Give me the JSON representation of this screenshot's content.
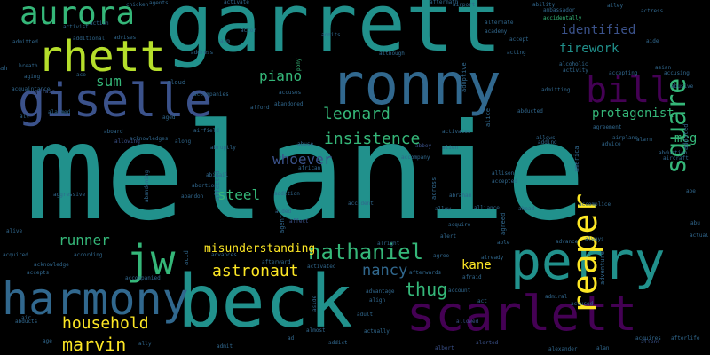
{
  "palette": {
    "background": "#000000",
    "dark_purple": "#440154",
    "indigo": "#3b528b",
    "blue": "#31688e",
    "teal": "#21918c",
    "green": "#35b779",
    "yellow_green": "#b5de2b",
    "yellow": "#fde725"
  },
  "words": [
    {
      "text": "melanie",
      "color": "#21918c",
      "rotate": 0
    },
    {
      "text": "garrett",
      "color": "#21918c",
      "rotate": 0
    },
    {
      "text": "beck",
      "color": "#21918c",
      "rotate": 0
    },
    {
      "text": "perry",
      "color": "#21918c",
      "rotate": 0
    },
    {
      "text": "ronny",
      "color": "#31688e",
      "rotate": 0
    },
    {
      "text": "scarlett",
      "color": "#440154",
      "rotate": 0
    },
    {
      "text": "harmony",
      "color": "#31688e",
      "rotate": 0
    },
    {
      "text": "giselle",
      "color": "#3b528b",
      "rotate": 0
    },
    {
      "text": "rhett",
      "color": "#b5de2b",
      "rotate": 0
    },
    {
      "text": "jw",
      "color": "#35b779",
      "rotate": 0
    },
    {
      "text": "bill",
      "color": "#440154",
      "rotate": 0
    },
    {
      "text": "aurora",
      "color": "#35b779",
      "rotate": 0
    },
    {
      "text": "reaper",
      "color": "#fde725",
      "rotate": -90
    },
    {
      "text": "square",
      "color": "#35b779",
      "rotate": -90
    },
    {
      "text": "nathaniel",
      "color": "#35b779",
      "rotate": 0
    },
    {
      "text": "marvin",
      "color": "#fde725",
      "rotate": 0
    },
    {
      "text": "insistence",
      "color": "#35b779",
      "rotate": 0
    },
    {
      "text": "leonard",
      "color": "#35b779",
      "rotate": 0
    },
    {
      "text": "whoever",
      "color": "#3b528b",
      "rotate": 0
    },
    {
      "text": "nancy",
      "color": "#31688e",
      "rotate": 0
    },
    {
      "text": "thug",
      "color": "#35b779",
      "rotate": 0
    },
    {
      "text": "astronaut",
      "color": "#fde725",
      "rotate": 0
    },
    {
      "text": "household",
      "color": "#fde725",
      "rotate": 0
    },
    {
      "text": "piano",
      "color": "#35b779",
      "rotate": 0
    },
    {
      "text": "sum",
      "color": "#35b779",
      "rotate": 0
    },
    {
      "text": "runner",
      "color": "#35b779",
      "rotate": 0
    },
    {
      "text": "steel",
      "color": "#35b779",
      "rotate": 0
    },
    {
      "text": "meg",
      "color": "#35b779",
      "rotate": 0
    },
    {
      "text": "kane",
      "color": "#fde725",
      "rotate": 0
    },
    {
      "text": "identified",
      "color": "#3b528b",
      "rotate": 0
    },
    {
      "text": "firework",
      "color": "#21918c",
      "rotate": 0
    },
    {
      "text": "protagonist",
      "color": "#35b779",
      "rotate": 0
    },
    {
      "text": "misunderstanding",
      "color": "#fde725",
      "rotate": 0
    },
    {
      "text": "chicken",
      "color": "#31688e",
      "rotate": 0
    },
    {
      "text": "agents",
      "color": "#31688e",
      "rotate": 0
    },
    {
      "text": "activate",
      "color": "#31688e",
      "rotate": 0
    },
    {
      "text": "aftermath",
      "color": "#31688e",
      "rotate": 0
    },
    {
      "text": "airport",
      "color": "#31688e",
      "rotate": 0
    },
    {
      "text": "ability",
      "color": "#31688e",
      "rotate": 0
    },
    {
      "text": "alley",
      "color": "#31688e",
      "rotate": 0
    },
    {
      "text": "actress",
      "color": "#31688e",
      "rotate": 0
    },
    {
      "text": "accidentally",
      "color": "#35b779",
      "rotate": 0
    },
    {
      "text": "ambassador",
      "color": "#31688e",
      "rotate": 0
    },
    {
      "text": "alternate",
      "color": "#31688e",
      "rotate": 0
    },
    {
      "text": "academy",
      "color": "#31688e",
      "rotate": 0
    },
    {
      "text": "accept",
      "color": "#31688e",
      "rotate": 0
    },
    {
      "text": "alcoholic",
      "color": "#31688e",
      "rotate": 0
    },
    {
      "text": "aide",
      "color": "#31688e",
      "rotate": 0
    },
    {
      "text": "actor",
      "color": "#31688e",
      "rotate": 0
    },
    {
      "text": "admits",
      "color": "#31688e",
      "rotate": 0
    },
    {
      "text": "aim",
      "color": "#31688e",
      "rotate": 0
    },
    {
      "text": "address",
      "color": "#31688e",
      "rotate": 0
    },
    {
      "text": "pony",
      "color": "#35b779",
      "rotate": -90
    },
    {
      "text": "action",
      "color": "#31688e",
      "rotate": 0
    },
    {
      "text": "activist",
      "color": "#31688e",
      "rotate": 0
    },
    {
      "text": "additional",
      "color": "#31688e",
      "rotate": 0
    },
    {
      "text": "advises",
      "color": "#31688e",
      "rotate": 0
    },
    {
      "text": "admitted",
      "color": "#31688e",
      "rotate": 0
    },
    {
      "text": "breath",
      "color": "#31688e",
      "rotate": 0
    },
    {
      "text": "aging",
      "color": "#31688e",
      "rotate": 0
    },
    {
      "text": "ace",
      "color": "#31688e",
      "rotate": 0
    },
    {
      "text": "acquaintance",
      "color": "#31688e",
      "rotate": 0
    },
    {
      "text": "affair",
      "color": "#3b528b",
      "rotate": 0
    },
    {
      "text": "although",
      "color": "#31688e",
      "rotate": 0
    },
    {
      "text": "acting",
      "color": "#31688e",
      "rotate": 0
    },
    {
      "text": "activity",
      "color": "#31688e",
      "rotate": 0
    },
    {
      "text": "accepting",
      "color": "#31688e",
      "rotate": 0
    },
    {
      "text": "accusing",
      "color": "#31688e",
      "rotate": 0
    },
    {
      "text": "admitting",
      "color": "#31688e",
      "rotate": 0
    },
    {
      "text": "abusive",
      "color": "#31688e",
      "rotate": 0
    },
    {
      "text": "accuses",
      "color": "#31688e",
      "rotate": 0
    },
    {
      "text": "abandoned",
      "color": "#31688e",
      "rotate": 0
    },
    {
      "text": "afford",
      "color": "#31688e",
      "rotate": 0
    },
    {
      "text": "airfield",
      "color": "#31688e",
      "rotate": 0
    },
    {
      "text": "aboard",
      "color": "#31688e",
      "rotate": 0
    },
    {
      "text": "acknowledges",
      "color": "#31688e",
      "rotate": 0
    },
    {
      "text": "along",
      "color": "#31688e",
      "rotate": 0
    },
    {
      "text": "aged",
      "color": "#31688e",
      "rotate": 0
    },
    {
      "text": "alien",
      "color": "#31688e",
      "rotate": 0
    },
    {
      "text": "allowing",
      "color": "#3b528b",
      "rotate": 0
    },
    {
      "text": "abruptly",
      "color": "#31688e",
      "rotate": 0
    },
    {
      "text": "abuse",
      "color": "#31688e",
      "rotate": 0
    },
    {
      "text": "activates",
      "color": "#31688e",
      "rotate": 0
    },
    {
      "text": "abducted",
      "color": "#31688e",
      "rotate": 0
    },
    {
      "text": "allows",
      "color": "#31688e",
      "rotate": 0
    },
    {
      "text": "adding",
      "color": "#31688e",
      "rotate": 0
    },
    {
      "text": "agreement",
      "color": "#31688e",
      "rotate": 0
    },
    {
      "text": "airplane",
      "color": "#31688e",
      "rotate": 0
    },
    {
      "text": "alarm",
      "color": "#31688e",
      "rotate": 0
    },
    {
      "text": "aircraft",
      "color": "#31688e",
      "rotate": 0
    },
    {
      "text": "ahead",
      "color": "#31688e",
      "rotate": 0
    },
    {
      "text": "abbey",
      "color": "#3b528b",
      "rotate": 0
    },
    {
      "text": "accompany",
      "color": "#31688e",
      "rotate": 0
    },
    {
      "text": "african",
      "color": "#31688e",
      "rotate": 0
    },
    {
      "text": "abigail",
      "color": "#31688e",
      "rotate": 0
    },
    {
      "text": "abandon",
      "color": "#31688e",
      "rotate": 0
    },
    {
      "text": "abortion",
      "color": "#31688e",
      "rotate": 0
    },
    {
      "text": "addition",
      "color": "#31688e",
      "rotate": 0
    },
    {
      "text": "accident",
      "color": "#31688e",
      "rotate": 0
    },
    {
      "text": "allison",
      "color": "#31688e",
      "rotate": 0
    },
    {
      "text": "accepted",
      "color": "#31688e",
      "rotate": 0
    },
    {
      "text": "accomplice",
      "color": "#31688e",
      "rotate": 0
    },
    {
      "text": "abe",
      "color": "#31688e",
      "rotate": 0
    },
    {
      "text": "allow",
      "color": "#31688e",
      "rotate": 0
    },
    {
      "text": "alliance",
      "color": "#31688e",
      "rotate": 0
    },
    {
      "text": "abraham",
      "color": "#31688e",
      "rotate": 0
    },
    {
      "text": "aggressive",
      "color": "#31688e",
      "rotate": 0
    },
    {
      "text": "abu",
      "color": "#31688e",
      "rotate": 0
    },
    {
      "text": "actual",
      "color": "#31688e",
      "rotate": 0
    },
    {
      "text": "alive",
      "color": "#31688e",
      "rotate": 0
    },
    {
      "text": "aided",
      "color": "#31688e",
      "rotate": 0
    },
    {
      "text": "affect",
      "color": "#3b528b",
      "rotate": 0
    },
    {
      "text": "acquire",
      "color": "#31688e",
      "rotate": 0
    },
    {
      "text": "able",
      "color": "#31688e",
      "rotate": 0
    },
    {
      "text": "advance",
      "color": "#31688e",
      "rotate": 0
    },
    {
      "text": "always",
      "color": "#31688e",
      "rotate": 0
    },
    {
      "text": "acquired",
      "color": "#31688e",
      "rotate": 0
    },
    {
      "text": "according",
      "color": "#31688e",
      "rotate": 0
    },
    {
      "text": "afterward",
      "color": "#31688e",
      "rotate": 0
    },
    {
      "text": "alright",
      "color": "#31688e",
      "rotate": 0
    },
    {
      "text": "alert",
      "color": "#31688e",
      "rotate": 0
    },
    {
      "text": "agree",
      "color": "#31688e",
      "rotate": 0
    },
    {
      "text": "already",
      "color": "#31688e",
      "rotate": 0
    },
    {
      "text": "acknowledge",
      "color": "#31688e",
      "rotate": 0
    },
    {
      "text": "accepts",
      "color": "#31688e",
      "rotate": 0
    },
    {
      "text": "advances",
      "color": "#31688e",
      "rotate": 0
    },
    {
      "text": "activated",
      "color": "#31688e",
      "rotate": 0
    },
    {
      "text": "afterwards",
      "color": "#31688e",
      "rotate": 0
    },
    {
      "text": "accompanied",
      "color": "#31688e",
      "rotate": 0
    },
    {
      "text": "advantage",
      "color": "#31688e",
      "rotate": 0
    },
    {
      "text": "account",
      "color": "#31688e",
      "rotate": 0
    },
    {
      "text": "admiral",
      "color": "#31688e",
      "rotate": 0
    },
    {
      "text": "accused",
      "color": "#31688e",
      "rotate": 0
    },
    {
      "text": "afraid",
      "color": "#31688e",
      "rotate": 0
    },
    {
      "text": "abducts",
      "color": "#31688e",
      "rotate": 0
    },
    {
      "text": "align",
      "color": "#31688e",
      "rotate": 0
    },
    {
      "text": "adult",
      "color": "#31688e",
      "rotate": 0
    },
    {
      "text": "allowed",
      "color": "#3b528b",
      "rotate": 0
    },
    {
      "text": "act",
      "color": "#31688e",
      "rotate": 0
    },
    {
      "text": "actually",
      "color": "#31688e",
      "rotate": 0
    },
    {
      "text": "almost",
      "color": "#31688e",
      "rotate": 0
    },
    {
      "text": "age",
      "color": "#31688e",
      "rotate": 0
    },
    {
      "text": "ally",
      "color": "#31688e",
      "rotate": 0
    },
    {
      "text": "ad",
      "color": "#31688e",
      "rotate": 0
    },
    {
      "text": "addict",
      "color": "#31688e",
      "rotate": 0
    },
    {
      "text": "admit",
      "color": "#31688e",
      "rotate": 0
    },
    {
      "text": "albert",
      "color": "#3b528b",
      "rotate": 0
    },
    {
      "text": "alerted",
      "color": "#3b528b",
      "rotate": 0
    },
    {
      "text": "alexander",
      "color": "#31688e",
      "rotate": 0
    },
    {
      "text": "alan",
      "color": "#31688e",
      "rotate": 0
    },
    {
      "text": "abduction",
      "color": "#31688e",
      "rotate": 0
    },
    {
      "text": "accompanies",
      "color": "#31688e",
      "rotate": 0
    },
    {
      "text": "advice",
      "color": "#31688e",
      "rotate": 0
    },
    {
      "text": "aloud",
      "color": "#31688e",
      "rotate": 0
    },
    {
      "text": "ah",
      "color": "#31688e",
      "rotate": 0
    },
    {
      "text": "adoptive",
      "color": "#31688e",
      "rotate": -90
    },
    {
      "text": "alice",
      "color": "#31688e",
      "rotate": -90
    },
    {
      "text": "america",
      "color": "#31688e",
      "rotate": -90
    },
    {
      "text": "acid",
      "color": "#31688e",
      "rotate": -90
    },
    {
      "text": "adventure",
      "color": "#31688e",
      "rotate": -90
    },
    {
      "text": "across",
      "color": "#31688e",
      "rotate": -90
    },
    {
      "text": "agreed",
      "color": "#31688e",
      "rotate": -90
    },
    {
      "text": "agent",
      "color": "#31688e",
      "rotate": -90
    },
    {
      "text": "adopted",
      "color": "#31688e",
      "rotate": -90
    },
    {
      "text": "affected",
      "color": "#31688e",
      "rotate": -90
    },
    {
      "text": "aside",
      "color": "#31688e",
      "rotate": -90
    },
    {
      "text": "abandoning",
      "color": "#31688e",
      "rotate": -90
    },
    {
      "text": "air",
      "color": "#31688e",
      "rotate": 0
    },
    {
      "text": "all",
      "color": "#31688e",
      "rotate": 0
    },
    {
      "text": "acquires",
      "color": "#31688e",
      "rotate": 0
    },
    {
      "text": "afterlife",
      "color": "#31688e",
      "rotate": 0
    },
    {
      "text": "alarmed",
      "color": "#31688e",
      "rotate": 0
    },
    {
      "text": "aliens",
      "color": "#3b528b",
      "rotate": 0
    },
    {
      "text": "asian",
      "color": "#31688e",
      "rotate": 0
    },
    {
      "text": "ai",
      "color": "#31688e",
      "rotate": 0
    },
    {
      "text": "aside",
      "color": "#31688e",
      "rotate": 0
    },
    {
      "text": "aster",
      "color": "#31688e",
      "rotate": 0
    }
  ]
}
